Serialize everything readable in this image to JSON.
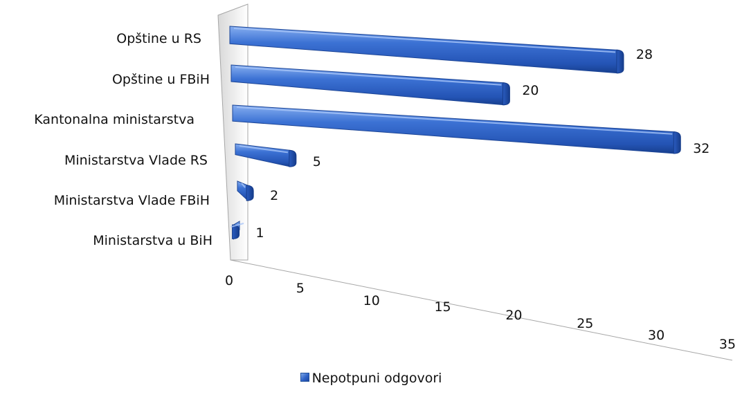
{
  "chart_data": {
    "type": "bar",
    "orientation": "horizontal",
    "style": "3d-perspective",
    "categories": [
      "Opštine u RS",
      "Opštine u FBiH",
      "Kantonalna ministarstva",
      "Ministarstva Vlade RS",
      "Ministarstva Vlade FBiH",
      "Ministarstva u BiH"
    ],
    "series": [
      {
        "name": "Nepotpuni odgovori",
        "values": [
          28,
          20,
          32,
          5,
          2,
          1
        ]
      }
    ],
    "value_labels": [
      "28",
      "20",
      "32",
      "5",
      "2",
      "1"
    ],
    "xlim": [
      0,
      35
    ],
    "x_ticks": [
      "0",
      "5",
      "10",
      "15",
      "20",
      "25",
      "30",
      "35"
    ],
    "grid": false,
    "legend_position": "bottom",
    "bar_color": "#2f63c7"
  }
}
